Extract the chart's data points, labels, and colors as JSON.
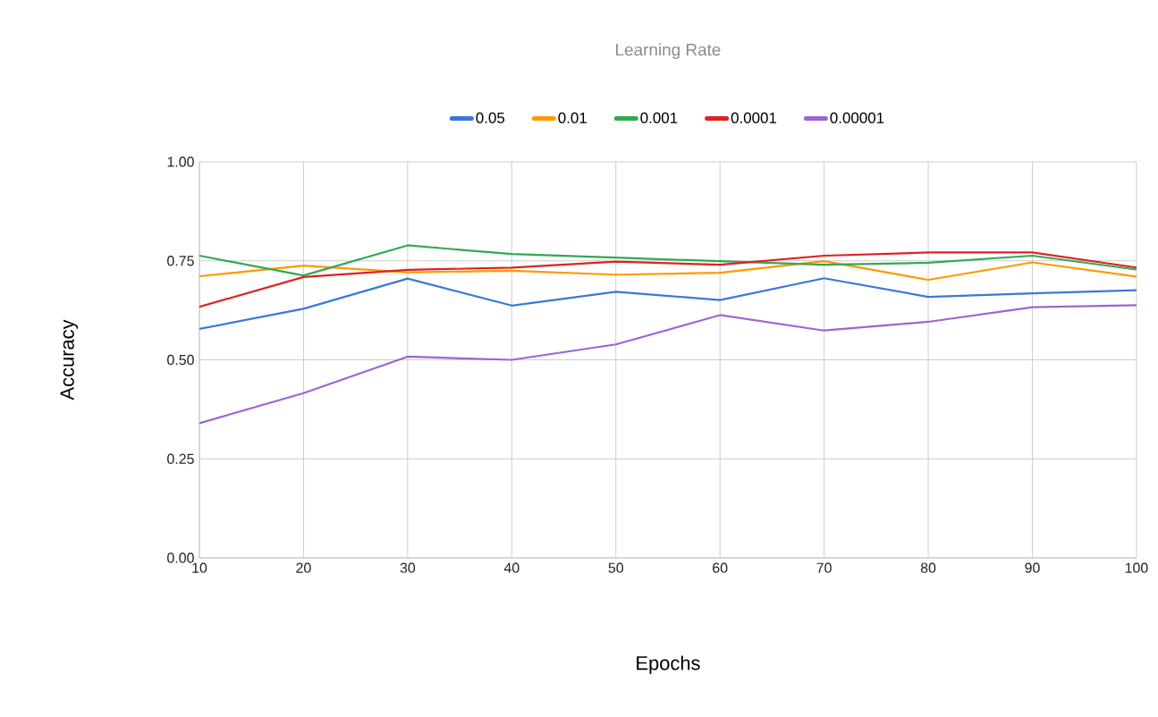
{
  "chart_data": {
    "type": "line",
    "title": "Learning Rate",
    "xlabel": "Epochs",
    "ylabel": "Accuracy",
    "x": [
      10,
      20,
      30,
      40,
      50,
      60,
      70,
      80,
      90,
      100
    ],
    "series": [
      {
        "name": "0.05",
        "color": "#3c78d8",
        "values": [
          0.578,
          0.629,
          0.705,
          0.637,
          0.672,
          0.651,
          0.706,
          0.659,
          0.668,
          0.676
        ]
      },
      {
        "name": "0.01",
        "color": "#ff9900",
        "values": [
          0.711,
          0.738,
          0.721,
          0.725,
          0.715,
          0.72,
          0.749,
          0.702,
          0.746,
          0.71
        ]
      },
      {
        "name": "0.001",
        "color": "#34a853",
        "values": [
          0.763,
          0.713,
          0.789,
          0.767,
          0.758,
          0.749,
          0.74,
          0.745,
          0.763,
          0.728
        ]
      },
      {
        "name": "0.0001",
        "color": "#dd2222",
        "values": [
          0.634,
          0.709,
          0.727,
          0.733,
          0.748,
          0.74,
          0.763,
          0.771,
          0.771,
          0.733
        ]
      },
      {
        "name": "0.00001",
        "color": "#a064d0",
        "values": [
          0.34,
          0.416,
          0.508,
          0.5,
          0.539,
          0.613,
          0.574,
          0.596,
          0.633,
          0.638
        ]
      }
    ],
    "xlim": [
      10,
      100
    ],
    "ylim": [
      0,
      1
    ],
    "xticks": [
      10,
      20,
      30,
      40,
      50,
      60,
      70,
      80,
      90,
      100
    ],
    "yticks": [
      {
        "value": 0,
        "label": "0.00"
      },
      {
        "value": 0.25,
        "label": "0.25"
      },
      {
        "value": 0.5,
        "label": "0.50"
      },
      {
        "value": 0.75,
        "label": "0.75"
      },
      {
        "value": 1,
        "label": "1.00"
      }
    ],
    "grid": true,
    "legend": "top"
  }
}
